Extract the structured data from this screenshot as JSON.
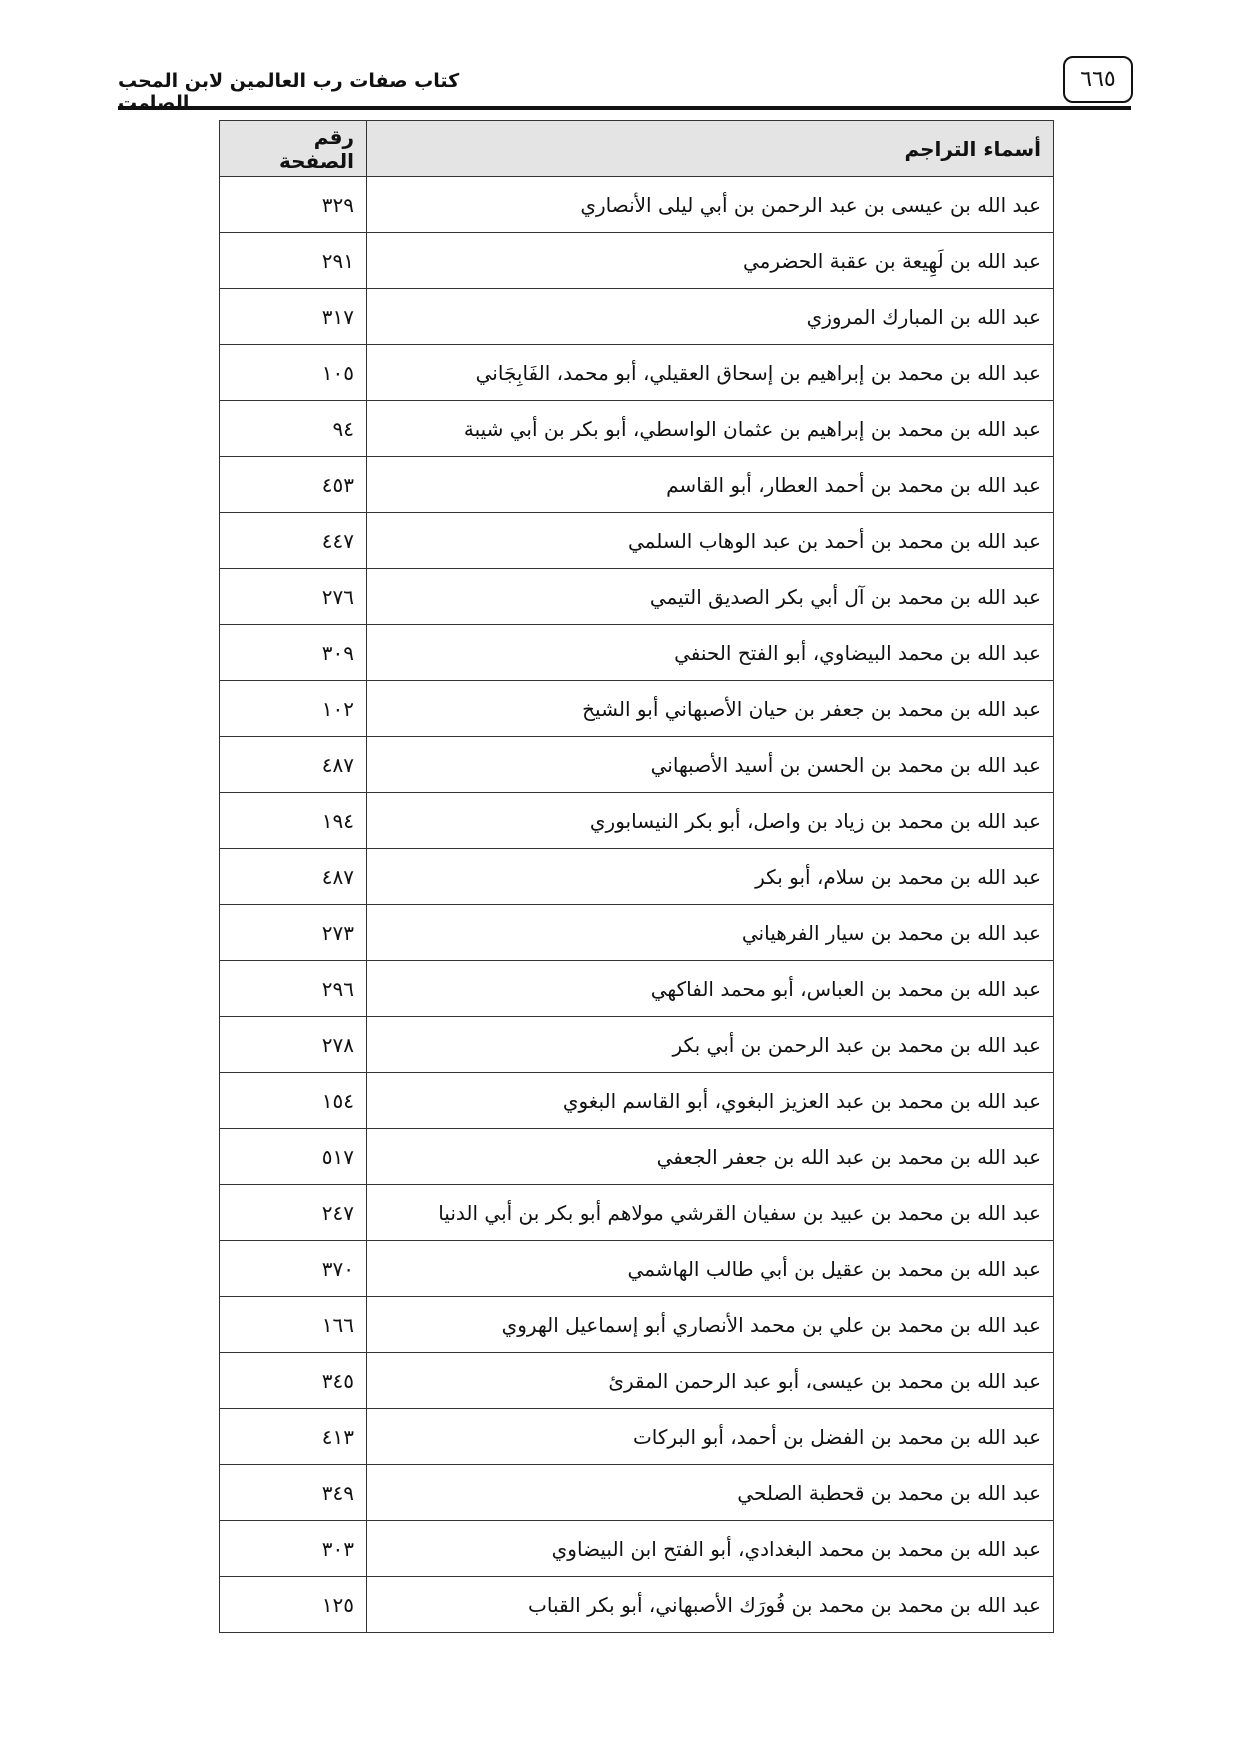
{
  "header": {
    "title": "كتاب صفات رب العالمين لابن المحب الصامت",
    "page_number": "٦٦٥"
  },
  "table": {
    "columns": [
      "أسماء التراجم",
      "رقم الصفحة"
    ],
    "rows": [
      [
        "عبد الله بن عيسى بن عبد الرحمن بن أبي ليلى الأنصاري",
        "٣٢٩"
      ],
      [
        "عبد الله بن لَهِيعة بن عقبة الحضرمي",
        "٢٩١"
      ],
      [
        "عبد الله بن المبارك المروزي",
        "٣١٧"
      ],
      [
        "عبد الله بن محمد بن إبراهيم بن إسحاق العقيلي، أبو محمد، الفَابِجَاني",
        "١٠٥"
      ],
      [
        "عبد الله بن محمد بن إبراهيم بن عثمان الواسطي، أبو بكر بن أبي شيبة",
        "٩٤"
      ],
      [
        "عبد الله بن محمد بن أحمد العطار، أبو القاسم",
        "٤٥٣"
      ],
      [
        "عبد الله بن محمد بن أحمد بن عبد الوهاب السلمي",
        "٤٤٧"
      ],
      [
        "عبد الله بن محمد بن آل أبي بكر الصديق التيمي",
        "٢٧٦"
      ],
      [
        "عبد الله بن محمد البيضاوي، أبو الفتح الحنفي",
        "٣٠٩"
      ],
      [
        "عبد الله بن محمد بن جعفر بن حيان الأصبهاني أبو الشيخ",
        "١٠٢"
      ],
      [
        "عبد الله بن محمد بن الحسن بن أسيد الأصبهاني",
        "٤٨٧"
      ],
      [
        "عبد الله بن محمد بن زياد بن واصل، أبو بكر النيسابوري",
        "١٩٤"
      ],
      [
        "عبد الله بن محمد بن سلام، أبو بكر",
        "٤٨٧"
      ],
      [
        "عبد الله بن محمد بن سيار الفرهياني",
        "٢٧٣"
      ],
      [
        "عبد الله بن محمد بن العباس، أبو محمد الفاكهي",
        "٢٩٦"
      ],
      [
        "عبد الله بن محمد بن عبد الرحمن بن أبي بكر",
        "٢٧٨"
      ],
      [
        "عبد الله بن محمد بن عبد العزيز البغوي، أبو القاسم البغوي",
        "١٥٤"
      ],
      [
        "عبد الله بن محمد بن عبد الله بن جعفر الجعفي",
        "٥١٧"
      ],
      [
        "عبد الله بن محمد بن عبيد بن سفيان القرشي مولاهم أبو بكر بن أبي الدنيا",
        "٢٤٧"
      ],
      [
        "عبد الله بن محمد بن عقيل بن أبي طالب الهاشمي",
        "٣٧٠"
      ],
      [
        "عبد الله بن محمد بن علي بن محمد الأنصاري أبو إسماعيل الهروي",
        "١٦٦"
      ],
      [
        "عبد الله بن محمد بن عيسى، أبو عبد الرحمن المقرئ",
        "٣٤٥"
      ],
      [
        "عبد الله بن محمد بن الفضل بن أحمد، أبو البركات",
        "٤١٣"
      ],
      [
        "عبد الله بن محمد بن قحطبة الصلحي",
        "٣٤٩"
      ],
      [
        "عبد الله بن محمد بن محمد البغدادي، أبو الفتح ابن البيضاوي",
        "٣٠٣"
      ],
      [
        "عبد الله بن محمد بن محمد بن فُورَك الأصبهاني، أبو بكر القباب",
        "١٢٥"
      ]
    ]
  }
}
